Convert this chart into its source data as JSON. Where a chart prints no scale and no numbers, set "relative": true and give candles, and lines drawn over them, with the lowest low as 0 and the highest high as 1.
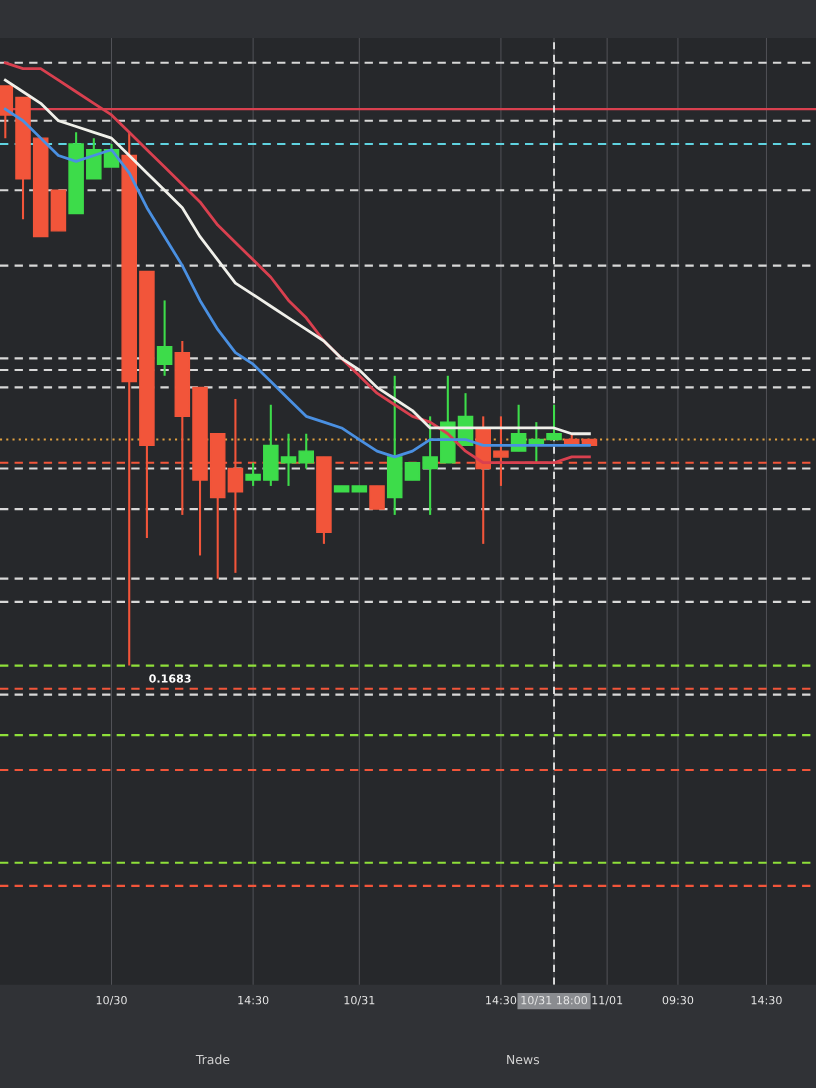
{
  "chart_data": {
    "type": "candlestick",
    "relative": true,
    "categories": [
      null,
      null,
      null,
      null,
      null,
      null,
      "10/30",
      null,
      null,
      null,
      null,
      null,
      null,
      null,
      "14:30",
      null,
      null,
      null,
      null,
      null,
      "10/31",
      null,
      null,
      null,
      null,
      null,
      null,
      null,
      "14:30",
      null,
      null,
      "10/31 18:00",
      null,
      null,
      "11/01",
      null,
      null,
      null,
      "09:30",
      null,
      null,
      null,
      null,
      "14:30",
      null,
      null
    ],
    "ohlc": [
      [
        1.0,
        1.0,
        0.91,
        0.95
      ],
      [
        0.98,
        0.98,
        0.77,
        0.84
      ],
      [
        0.91,
        0.91,
        0.74,
        0.74
      ],
      [
        0.82,
        0.82,
        0.75,
        0.75
      ],
      [
        0.78,
        0.92,
        0.78,
        0.9
      ],
      [
        0.84,
        0.91,
        0.84,
        0.89
      ],
      [
        0.86,
        0.9,
        0.86,
        0.89
      ],
      [
        0.88,
        0.92,
        0.0,
        0.49
      ],
      [
        0.68,
        0.68,
        0.22,
        0.38
      ],
      [
        0.52,
        0.63,
        0.5,
        0.55
      ],
      [
        0.54,
        0.56,
        0.26,
        0.43
      ],
      [
        0.48,
        0.48,
        0.19,
        0.32
      ],
      [
        0.4,
        0.4,
        0.15,
        0.29
      ],
      [
        0.34,
        0.46,
        0.16,
        0.3
      ],
      [
        0.32,
        0.35,
        0.31,
        0.33
      ],
      [
        0.32,
        0.45,
        0.31,
        0.38
      ],
      [
        0.35,
        0.4,
        0.31,
        0.36
      ],
      [
        0.35,
        0.4,
        0.34,
        0.37
      ],
      [
        0.36,
        0.36,
        0.21,
        0.23
      ],
      [
        0.3,
        0.31,
        0.3,
        0.31
      ],
      [
        0.3,
        0.31,
        0.3,
        0.31
      ],
      [
        0.31,
        0.31,
        0.27,
        0.27
      ],
      [
        0.29,
        0.5,
        0.26,
        0.36
      ],
      [
        0.32,
        0.35,
        0.32,
        0.35
      ],
      [
        0.34,
        0.43,
        0.26,
        0.36
      ],
      [
        0.35,
        0.5,
        0.35,
        0.42
      ],
      [
        0.38,
        0.47,
        0.38,
        0.43
      ],
      [
        0.41,
        0.43,
        0.21,
        0.34
      ],
      [
        0.37,
        0.43,
        0.31,
        0.36
      ],
      [
        0.37,
        0.45,
        0.37,
        0.4
      ],
      [
        0.38,
        0.42,
        0.35,
        0.39
      ],
      [
        0.39,
        0.45,
        0.39,
        0.4
      ],
      [
        0.39,
        0.4,
        0.38,
        0.38
      ],
      [
        0.39,
        0.39,
        0.38,
        0.38
      ],
      null,
      null,
      null,
      null,
      null,
      null,
      null,
      null,
      null,
      null,
      null,
      null
    ],
    "colors": [
      "#f2553a",
      "#f2553a",
      "#f2553a",
      "#f2553a",
      "#3ddc4a",
      "#3ddc4a",
      "#3ddc4a",
      "#f2553a",
      "#f2553a",
      "#3ddc4a",
      "#f2553a",
      "#f2553a",
      "#f2553a",
      "#f2553a",
      "#3ddc4a",
      "#3ddc4a",
      "#3ddc4a",
      "#3ddc4a",
      "#f2553a",
      "#3ddc4a",
      "#3ddc4a",
      "#f2553a",
      "#3ddc4a",
      "#3ddc4a",
      "#3ddc4a",
      "#3ddc4a",
      "#3ddc4a",
      "#f2553a",
      "#f2553a",
      "#3ddc4a",
      "#3ddc4a",
      "#3ddc4a",
      "#f2553a",
      "#f2553a",
      null,
      null,
      null,
      null,
      null,
      null,
      null,
      null,
      null,
      null,
      null,
      null
    ],
    "series": [
      {
        "type": "line",
        "color": "#d9404f",
        "values": [
          1.04,
          1.03,
          1.03,
          1.01,
          0.99,
          0.97,
          0.95,
          0.92,
          0.89,
          0.86,
          0.83,
          0.8,
          0.76,
          0.73,
          0.7,
          0.67,
          0.63,
          0.6,
          0.56,
          0.53,
          0.5,
          0.47,
          0.45,
          0.43,
          0.42,
          0.4,
          0.37,
          0.35,
          0.35,
          0.35,
          0.35,
          0.35,
          0.36,
          0.36,
          null,
          null,
          null,
          null,
          null,
          null,
          null,
          null,
          null,
          null,
          null,
          null
        ]
      },
      {
        "type": "line",
        "color": "#f0f0ea",
        "values": [
          1.01,
          0.99,
          0.97,
          0.94,
          0.93,
          0.92,
          0.91,
          0.88,
          0.85,
          0.82,
          0.79,
          0.74,
          0.7,
          0.66,
          0.64,
          0.62,
          0.6,
          0.58,
          0.56,
          0.53,
          0.51,
          0.48,
          0.46,
          0.44,
          0.41,
          0.41,
          0.41,
          0.41,
          0.41,
          0.41,
          0.41,
          0.41,
          0.4,
          0.4,
          null,
          null,
          null,
          null,
          null,
          null,
          null,
          null,
          null,
          null,
          null,
          null
        ]
      },
      {
        "type": "line",
        "color": "#4a90e2",
        "values": [
          0.96,
          0.94,
          0.91,
          0.88,
          0.87,
          0.88,
          0.89,
          0.85,
          0.79,
          0.74,
          0.69,
          0.63,
          0.58,
          0.54,
          0.52,
          0.49,
          0.46,
          0.43,
          0.42,
          0.41,
          0.39,
          0.37,
          0.36,
          0.37,
          0.39,
          0.39,
          0.39,
          0.38,
          0.38,
          0.38,
          0.38,
          0.38,
          0.38,
          0.38,
          null,
          null,
          null,
          null,
          null,
          null,
          null,
          null,
          null,
          null,
          null,
          null
        ]
      }
    ],
    "ref_lines": [
      {
        "axis": "y",
        "value": 1.04,
        "color": "#d8d8d8",
        "line_style": "dashed"
      },
      {
        "axis": "y",
        "value": 0.96,
        "color": "#d9404f",
        "line_style": "solid"
      },
      {
        "axis": "y",
        "value": 0.94,
        "color": "#d8d8d8",
        "line_style": "dashed"
      },
      {
        "axis": "y",
        "value": 0.9,
        "color": "#5fd3e0",
        "line_style": "dashed"
      },
      {
        "axis": "y",
        "value": 0.82,
        "color": "#d8d8d8",
        "line_style": "dashed"
      },
      {
        "axis": "y",
        "value": 0.69,
        "color": "#d8d8d8",
        "line_style": "dashed"
      },
      {
        "axis": "y",
        "value": 0.53,
        "color": "#d8d8d8",
        "line_style": "dashed"
      },
      {
        "axis": "y",
        "value": 0.51,
        "color": "#d8d8d8",
        "line_style": "dashed"
      },
      {
        "axis": "y",
        "value": 0.48,
        "color": "#d8d8d8",
        "line_style": "dashed"
      },
      {
        "axis": "y",
        "value": 0.39,
        "color": "#e0a040",
        "line_style": "dotted"
      },
      {
        "axis": "y",
        "value": 0.35,
        "color": "#f2553a",
        "line_style": "dashed"
      },
      {
        "axis": "y",
        "value": 0.34,
        "color": "#d8d8d8",
        "line_style": "dashed"
      },
      {
        "axis": "y",
        "value": 0.27,
        "color": "#d8d8d8",
        "line_style": "dashed"
      },
      {
        "axis": "y",
        "value": 0.15,
        "color": "#d8d8d8",
        "line_style": "dashed"
      },
      {
        "axis": "y",
        "value": 0.11,
        "color": "#d8d8d8",
        "line_style": "dashed"
      },
      {
        "axis": "y",
        "value": 0.0,
        "color": "#8fe03a",
        "line_style": "dashed"
      },
      {
        "axis": "y",
        "value": -0.04,
        "color": "#f2553a",
        "line_style": "dashed"
      },
      {
        "axis": "y",
        "value": -0.05,
        "color": "#d8d8d8",
        "line_style": "dashed"
      },
      {
        "axis": "y",
        "value": -0.12,
        "color": "#8fe03a",
        "line_style": "dashed"
      },
      {
        "axis": "y",
        "value": -0.18,
        "color": "#f2553a",
        "line_style": "dashed"
      },
      {
        "axis": "y",
        "value": -0.34,
        "color": "#8fe03a",
        "line_style": "dashed"
      },
      {
        "axis": "y",
        "value": -0.38,
        "color": "#f2553a",
        "line_style": "dashed"
      },
      {
        "axis": "x",
        "value": "10/31 18:00",
        "color": "#e8e8e8",
        "line_style": "dashed"
      }
    ],
    "annotations": [
      {
        "text": "0.1683",
        "y": 0.0
      },
      "Trade",
      "News"
    ],
    "grid": "x",
    "tick_labels": "x"
  }
}
